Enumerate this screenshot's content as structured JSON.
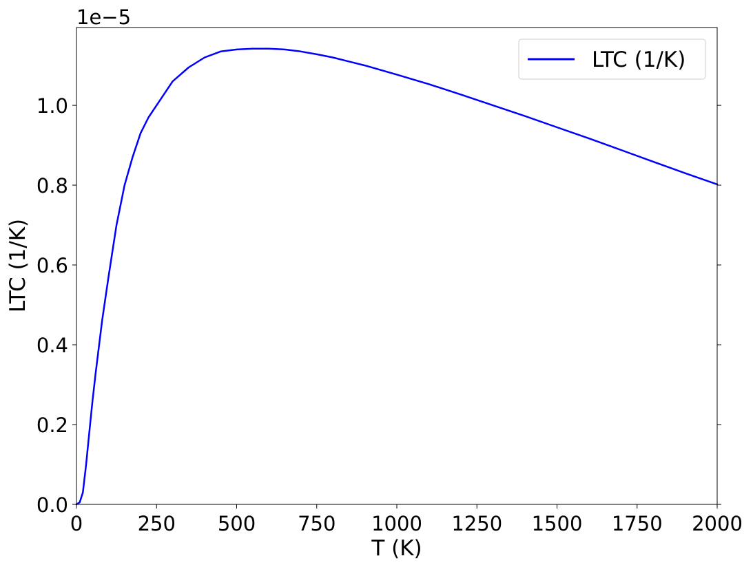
{
  "chart_data": {
    "type": "line",
    "xlabel": "T (K)",
    "ylabel": "LTC (1/K)",
    "y_offset_label": "1e−5",
    "xlim": [
      0,
      2000
    ],
    "ylim": [
      0,
      1.195
    ],
    "xticks": [
      0,
      250,
      500,
      750,
      1000,
      1250,
      1500,
      1750,
      2000
    ],
    "xtick_labels": [
      "0",
      "250",
      "500",
      "750",
      "1000",
      "1250",
      "1500",
      "1750",
      "2000"
    ],
    "yticks": [
      0,
      0.2,
      0.4,
      0.6,
      0.8,
      1.0
    ],
    "ytick_labels": [
      "0.0",
      "0.2",
      "0.4",
      "0.6",
      "0.8",
      "1.0"
    ],
    "grid": false,
    "legend_position": "top-right",
    "series": [
      {
        "name": "LTC (1/K)",
        "color": "#0000ff",
        "x": [
          0,
          10,
          20,
          30,
          40,
          50,
          60,
          80,
          100,
          125,
          150,
          175,
          200,
          225,
          250,
          275,
          300,
          350,
          400,
          450,
          500,
          550,
          600,
          650,
          700,
          750,
          800,
          900,
          1000,
          1100,
          1200,
          1300,
          1400,
          1500,
          1600,
          1700,
          1800,
          1900,
          2000
        ],
        "y": [
          0,
          0.005,
          0.03,
          0.1,
          0.18,
          0.26,
          0.33,
          0.46,
          0.57,
          0.7,
          0.8,
          0.87,
          0.93,
          0.97,
          1.0,
          1.03,
          1.06,
          1.095,
          1.12,
          1.135,
          1.14,
          1.142,
          1.142,
          1.14,
          1.135,
          1.128,
          1.12,
          1.1,
          1.077,
          1.053,
          1.027,
          1.0,
          0.973,
          0.945,
          0.917,
          0.888,
          0.859,
          0.83,
          0.802
        ]
      }
    ]
  }
}
